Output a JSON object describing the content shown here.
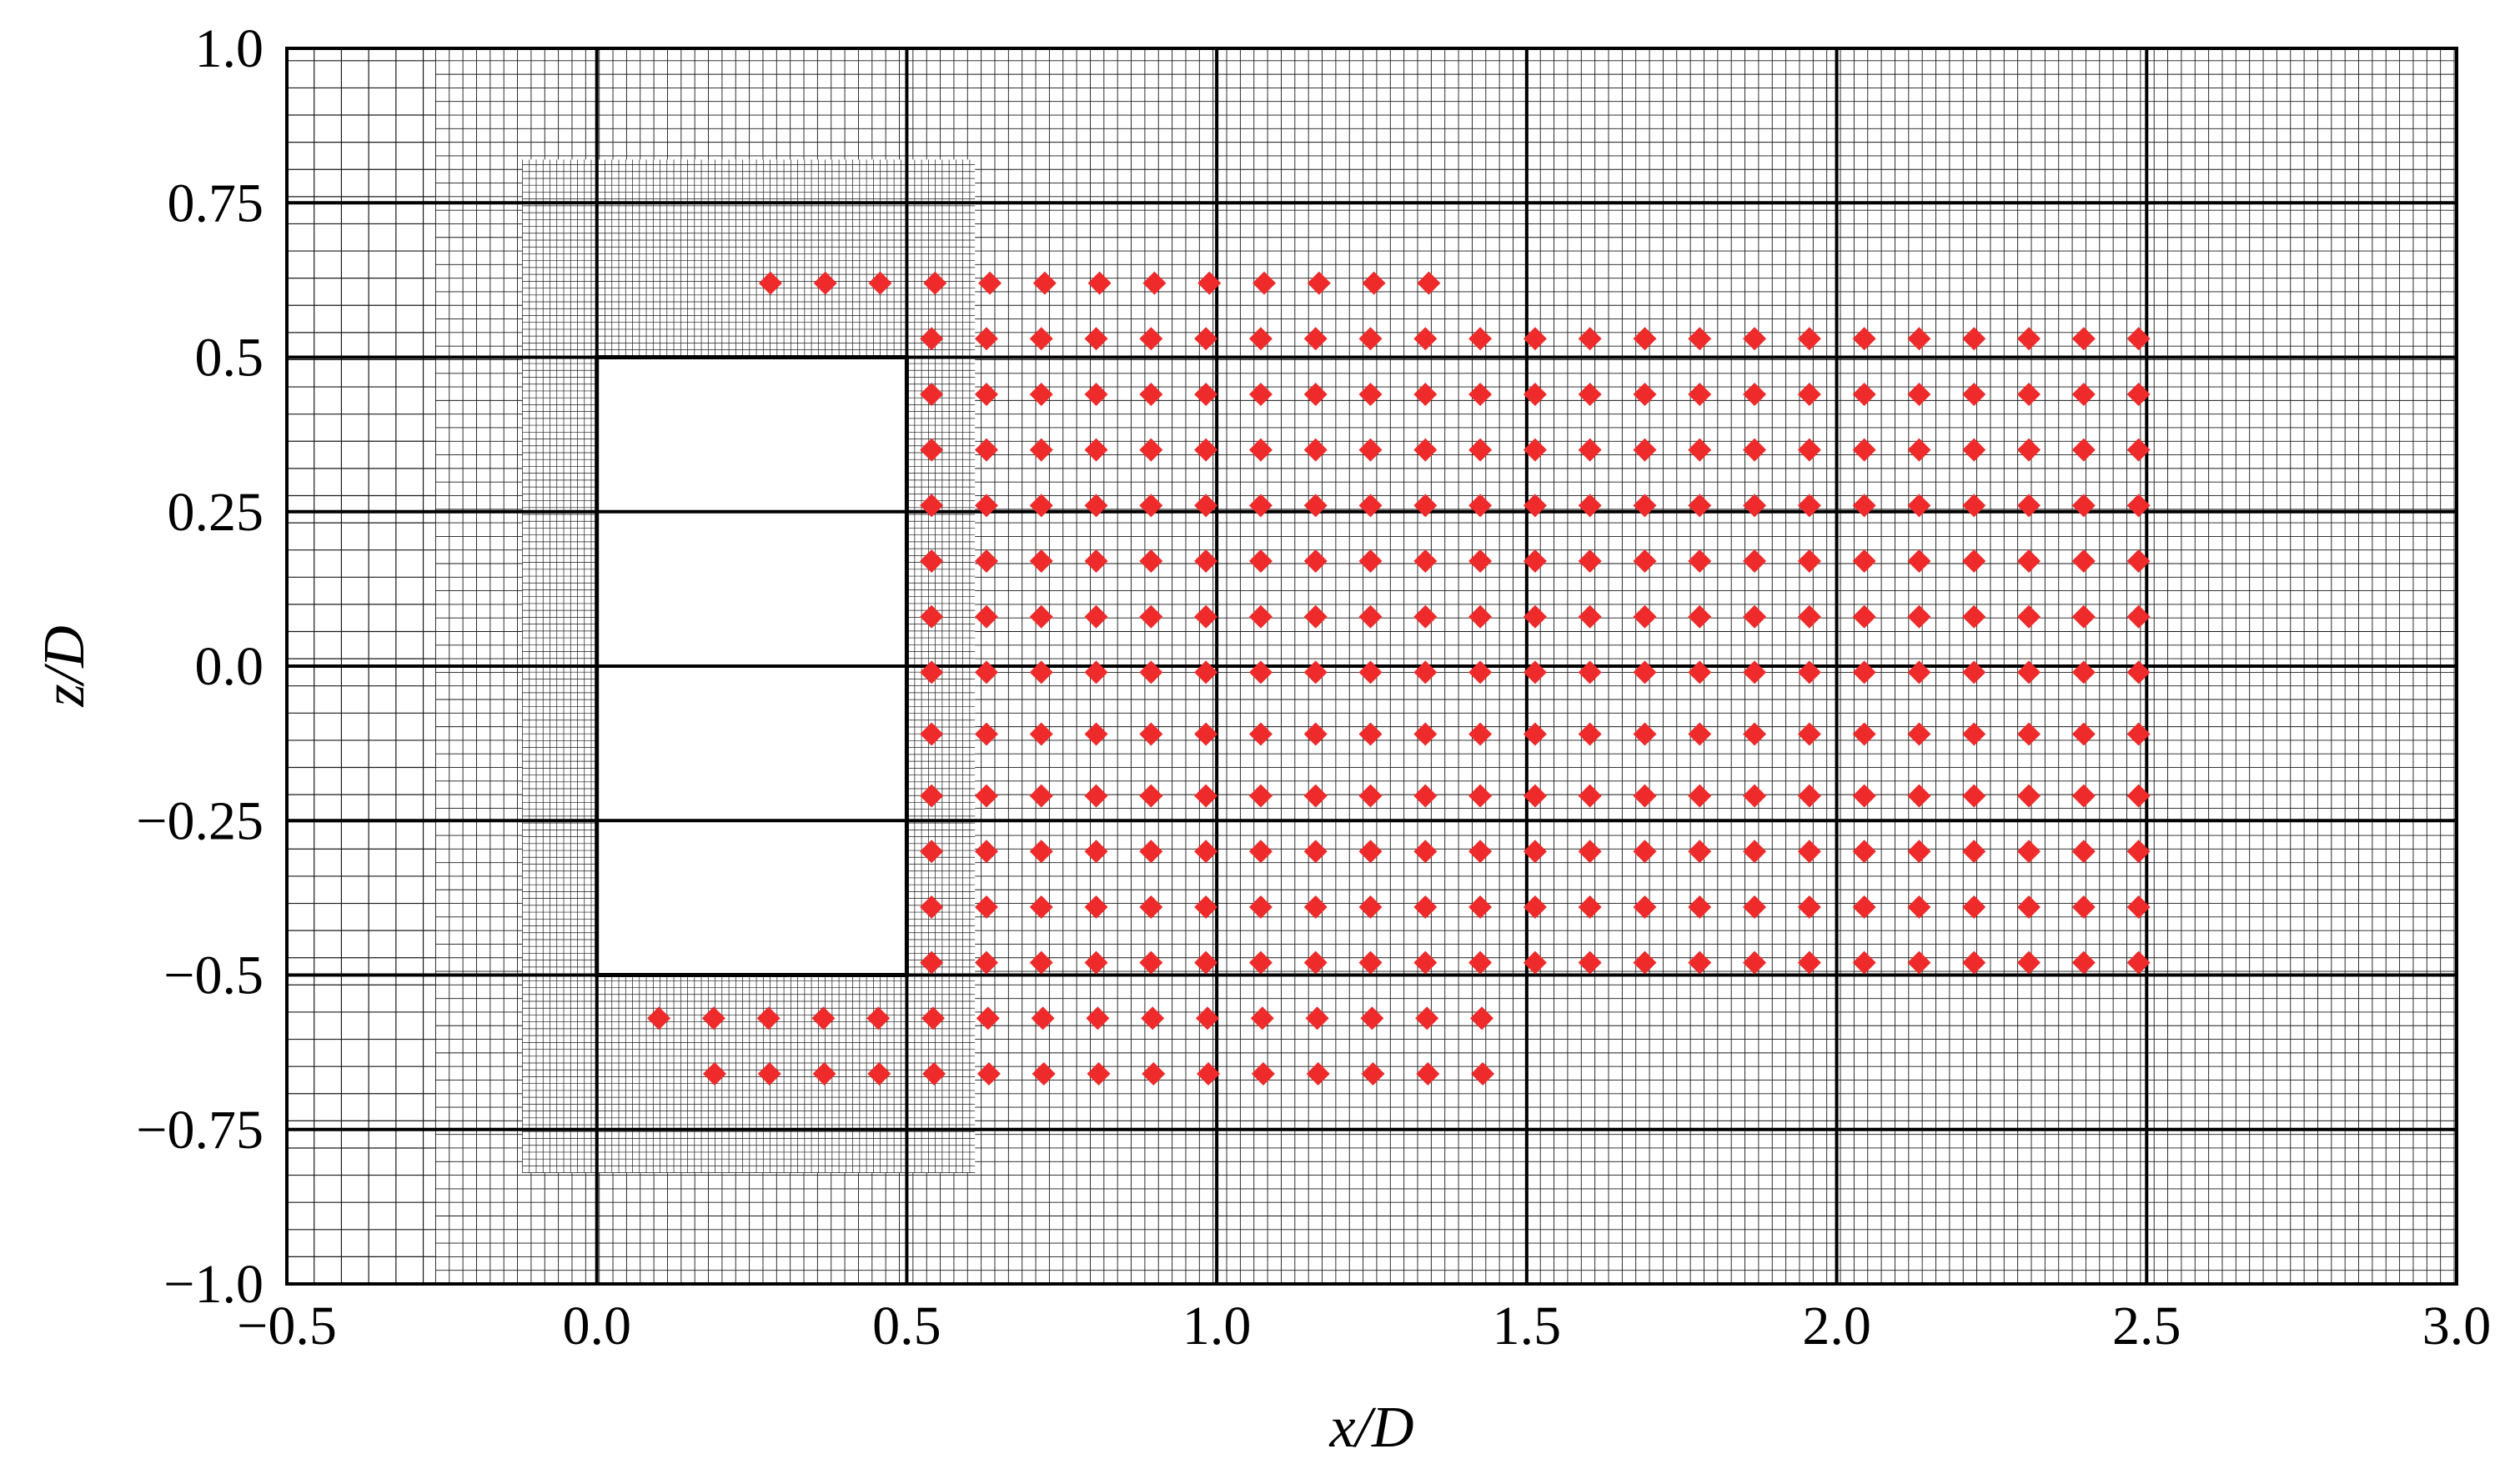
{
  "chart_data": {
    "type": "scatter",
    "xlabel": "x/D",
    "ylabel": "z/D",
    "xlim": [
      -0.5,
      3.0
    ],
    "ylim": [
      -1.0,
      1.0
    ],
    "x_ticks": [
      {
        "value": -0.5,
        "label": "−0.5"
      },
      {
        "value": 0.0,
        "label": "0.0"
      },
      {
        "value": 0.5,
        "label": "0.5"
      },
      {
        "value": 1.0,
        "label": "1.0"
      },
      {
        "value": 1.5,
        "label": "1.5"
      },
      {
        "value": 2.0,
        "label": "2.0"
      },
      {
        "value": 2.5,
        "label": "2.5"
      },
      {
        "value": 3.0,
        "label": "3.0"
      }
    ],
    "y_ticks": [
      {
        "value": 1.0,
        "label": "1.0"
      },
      {
        "value": 0.75,
        "label": "0.75"
      },
      {
        "value": 0.5,
        "label": "0.5"
      },
      {
        "value": 0.25,
        "label": "0.25"
      },
      {
        "value": 0.0,
        "label": "0.0"
      },
      {
        "value": -0.25,
        "label": "−0.25"
      },
      {
        "value": -0.5,
        "label": "−0.5"
      },
      {
        "value": -0.75,
        "label": "−0.75"
      },
      {
        "value": -1.0,
        "label": "−1.0"
      }
    ],
    "grid": true,
    "body_rectangle": {
      "x": [
        0.0,
        0.5
      ],
      "z": [
        -0.5,
        0.5
      ]
    },
    "mesh_regions": [
      {
        "x": [
          -0.5,
          -0.26
        ],
        "z": [
          -1.0,
          1.0
        ],
        "cell": 0.044
      },
      {
        "x": [
          -0.26,
          3.0
        ],
        "z": [
          -1.0,
          1.0
        ],
        "cell": 0.022
      },
      {
        "x": [
          -0.12,
          0.61
        ],
        "z": [
          -0.82,
          0.82
        ],
        "cell": 0.0111
      }
    ],
    "marker_color": "#ee2a2a",
    "series": [
      {
        "marker": "diamond",
        "rows": [
          {
            "z": 0.62,
            "x_start": 0.28,
            "x_end": 1.43,
            "step": 0.0885
          },
          {
            "z": 0.53,
            "x_start": 0.54,
            "x_end": 2.49,
            "step": 0.0885
          },
          {
            "z": 0.44,
            "x_start": 0.54,
            "x_end": 2.49,
            "step": 0.0885
          },
          {
            "z": 0.35,
            "x_start": 0.54,
            "x_end": 2.49,
            "step": 0.0885
          },
          {
            "z": 0.26,
            "x_start": 0.54,
            "x_end": 2.49,
            "step": 0.0885
          },
          {
            "z": 0.17,
            "x_start": 0.54,
            "x_end": 2.49,
            "step": 0.0885
          },
          {
            "z": 0.08,
            "x_start": 0.54,
            "x_end": 2.49,
            "step": 0.0885
          },
          {
            "z": -0.01,
            "x_start": 0.54,
            "x_end": 2.49,
            "step": 0.0885
          },
          {
            "z": -0.11,
            "x_start": 0.54,
            "x_end": 2.49,
            "step": 0.0885
          },
          {
            "z": -0.21,
            "x_start": 0.54,
            "x_end": 2.49,
            "step": 0.0885
          },
          {
            "z": -0.3,
            "x_start": 0.54,
            "x_end": 2.49,
            "step": 0.0885
          },
          {
            "z": -0.39,
            "x_start": 0.54,
            "x_end": 2.49,
            "step": 0.0885
          },
          {
            "z": -0.48,
            "x_start": 0.54,
            "x_end": 2.49,
            "step": 0.0885
          },
          {
            "z": -0.57,
            "x_start": 0.1,
            "x_end": 1.43,
            "step": 0.0885
          },
          {
            "z": -0.66,
            "x_start": 0.19,
            "x_end": 1.43,
            "step": 0.0885
          }
        ]
      }
    ]
  }
}
